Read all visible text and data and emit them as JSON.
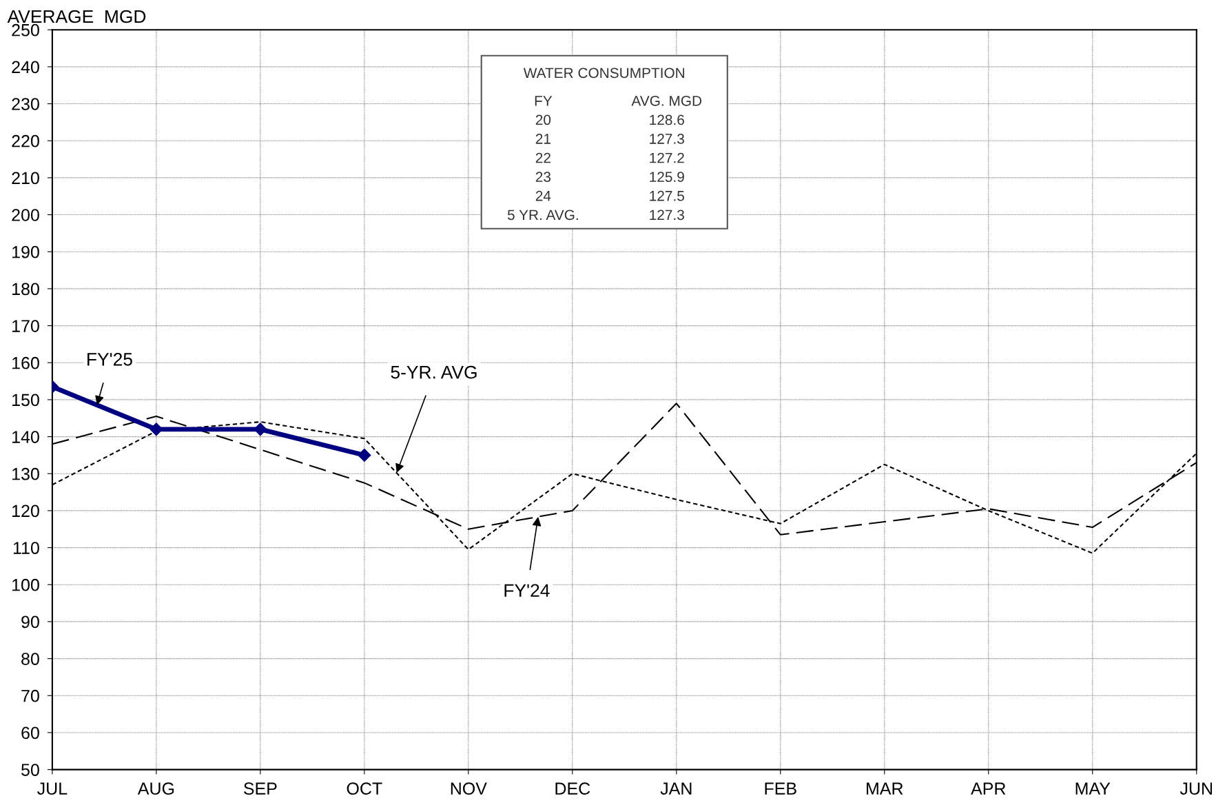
{
  "chart_data": {
    "type": "line",
    "ylabel": "AVERAGE  MGD",
    "categories": [
      "JUL",
      "AUG",
      "SEP",
      "OCT",
      "NOV",
      "DEC",
      "JAN",
      "FEB",
      "MAR",
      "APR",
      "MAY",
      "JUN"
    ],
    "series": [
      {
        "name": "FY'25",
        "color": "#000080",
        "line_style": "solid",
        "marker": "diamond",
        "values": [
          153.5,
          142,
          142,
          135,
          null,
          null,
          null,
          null,
          null,
          null,
          null,
          null
        ]
      },
      {
        "name": "FY'24",
        "color": "#000000",
        "line_style": "dashed",
        "values": [
          138,
          145.5,
          136.5,
          127.5,
          115,
          120,
          149,
          113.5,
          117,
          120.5,
          115.5,
          133
        ]
      },
      {
        "name": "5-YR. AVG",
        "color": "#000000",
        "line_style": "dotted",
        "values": [
          127,
          141.5,
          144,
          139.5,
          109.5,
          130,
          123,
          116.5,
          132.5,
          120,
          108.5,
          135.5
        ]
      }
    ],
    "ylim": [
      50,
      250
    ],
    "yticks": [
      50,
      60,
      70,
      80,
      90,
      100,
      110,
      120,
      130,
      140,
      150,
      160,
      170,
      180,
      190,
      200,
      210,
      220,
      230,
      240,
      250
    ],
    "grid": true,
    "legend": false,
    "annotations": [
      "WATER CONSUMPTION",
      "FY\tAVG. MGD",
      "20\t128.6",
      "21\t127.3",
      "22\t127.2",
      "23\t125.9",
      "24\t127.5",
      "5 YR. AVG.\t127.3"
    ]
  }
}
